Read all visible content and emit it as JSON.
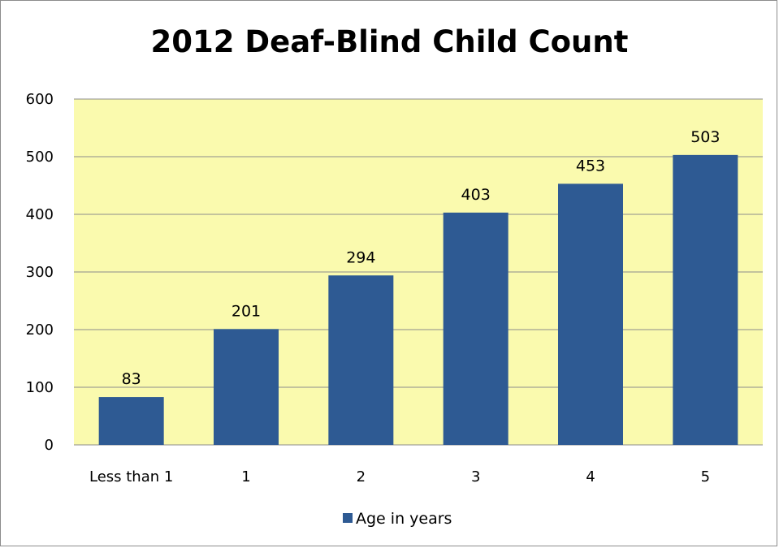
{
  "chart_data": {
    "type": "bar",
    "title": "2012 Deaf-Blind Child Count",
    "xlabel": "",
    "ylabel": "",
    "categories": [
      "Less than 1",
      "1",
      "2",
      "3",
      "4",
      "5"
    ],
    "series": [
      {
        "name": "Age in years",
        "values": [
          83,
          201,
          294,
          403,
          453,
          503
        ]
      }
    ],
    "ylim": [
      0,
      600
    ],
    "yticks": [
      0,
      100,
      200,
      300,
      400,
      500,
      600
    ],
    "grid": true,
    "legend": "bottom",
    "show_data_labels": true,
    "colors": {
      "bar": "#2e5a93",
      "plot_background": "#fafaae",
      "gridline": "#8c8c8c"
    }
  }
}
